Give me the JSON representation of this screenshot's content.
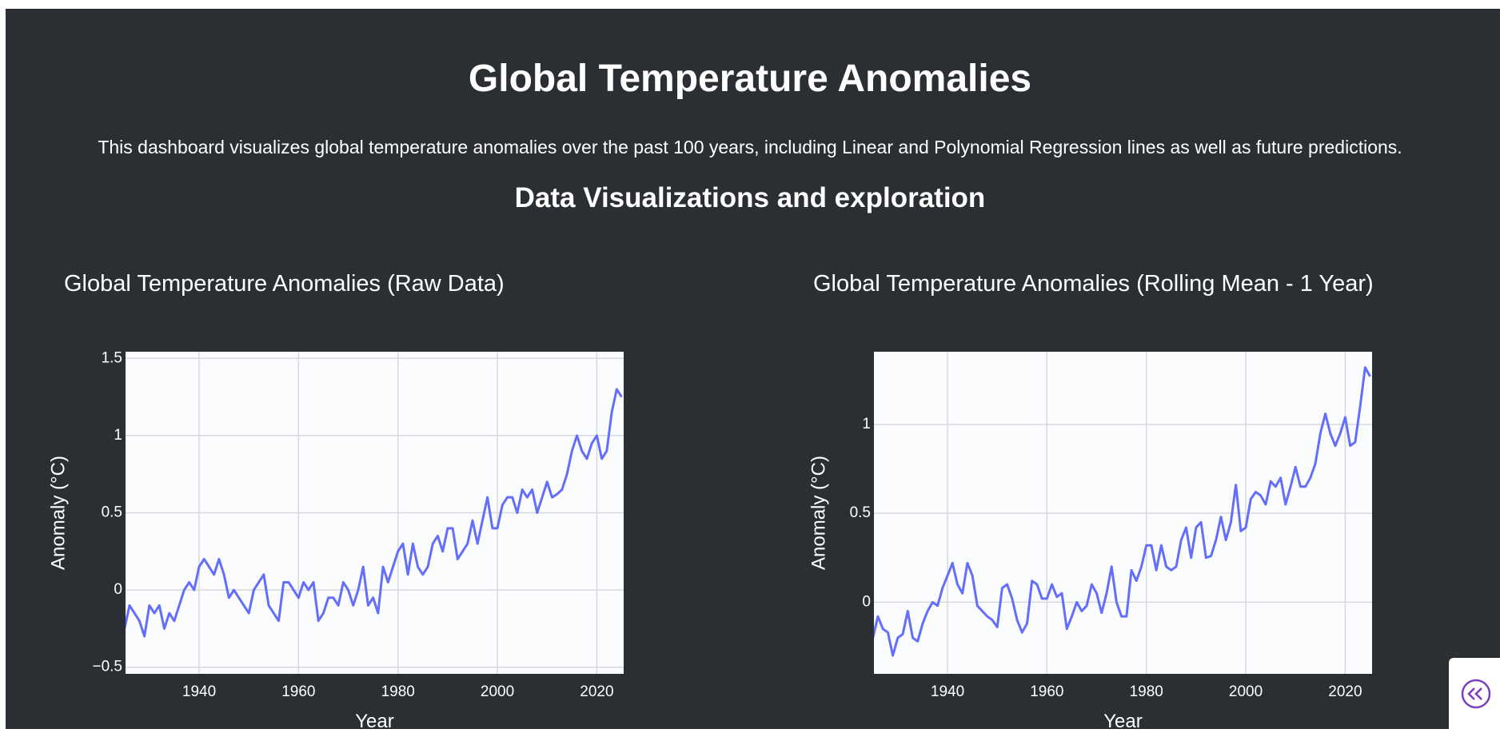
{
  "header": {
    "title": "Global Temperature Anomalies",
    "subtitle": "This dashboard visualizes global temperature anomalies over the past 100 years, including Linear and Polynomial Regression lines as well as future predictions.",
    "section": "Data Visualizations and exploration"
  },
  "chart_data": [
    {
      "type": "line",
      "title": "Global Temperature Anomalies (Raw Data)",
      "x_label": "Year",
      "y_label": "Anomaly (°C)",
      "color": "#636efa",
      "grid": true,
      "xlim": [
        1925.2,
        2025.4
      ],
      "xticks": [
        1940,
        1960,
        1980,
        2000,
        2020
      ],
      "ylim": [
        -0.543,
        1.543
      ],
      "yticks": [
        {
          "value": -0.5,
          "label": "−0.5"
        },
        0,
        0.5,
        1,
        1.5
      ],
      "x": [
        1925,
        1926,
        1927,
        1928,
        1929,
        1930,
        1931,
        1932,
        1933,
        1934,
        1935,
        1936,
        1937,
        1938,
        1939,
        1940,
        1941,
        1942,
        1943,
        1944,
        1945,
        1946,
        1947,
        1948,
        1949,
        1950,
        1951,
        1952,
        1953,
        1954,
        1955,
        1956,
        1957,
        1958,
        1959,
        1960,
        1961,
        1962,
        1963,
        1964,
        1965,
        1966,
        1967,
        1968,
        1969,
        1970,
        1971,
        1972,
        1973,
        1974,
        1975,
        1976,
        1977,
        1978,
        1979,
        1980,
        1981,
        1982,
        1983,
        1984,
        1985,
        1986,
        1987,
        1988,
        1989,
        1990,
        1991,
        1992,
        1993,
        1994,
        1995,
        1996,
        1997,
        1998,
        1999,
        2000,
        2001,
        2002,
        2003,
        2004,
        2005,
        2006,
        2007,
        2008,
        2009,
        2010,
        2011,
        2012,
        2013,
        2014,
        2015,
        2016,
        2017,
        2018,
        2019,
        2020,
        2021,
        2022,
        2023,
        2024,
        2025
      ],
      "values": [
        -0.25,
        -0.1,
        -0.15,
        -0.2,
        -0.3,
        -0.1,
        -0.15,
        -0.1,
        -0.25,
        -0.15,
        -0.2,
        -0.1,
        0.0,
        0.05,
        0.0,
        0.15,
        0.2,
        0.15,
        0.1,
        0.2,
        0.1,
        -0.05,
        0.0,
        -0.05,
        -0.1,
        -0.15,
        0.0,
        0.05,
        0.1,
        -0.1,
        -0.15,
        -0.2,
        0.05,
        0.05,
        0.0,
        -0.05,
        0.05,
        0.0,
        0.05,
        -0.2,
        -0.15,
        -0.05,
        -0.05,
        -0.1,
        0.05,
        0.0,
        -0.1,
        0.0,
        0.15,
        -0.1,
        -0.05,
        -0.15,
        0.15,
        0.05,
        0.15,
        0.25,
        0.3,
        0.1,
        0.3,
        0.15,
        0.1,
        0.15,
        0.3,
        0.35,
        0.25,
        0.4,
        0.4,
        0.2,
        0.25,
        0.3,
        0.45,
        0.3,
        0.45,
        0.6,
        0.4,
        0.4,
        0.55,
        0.6,
        0.6,
        0.5,
        0.65,
        0.6,
        0.65,
        0.5,
        0.6,
        0.7,
        0.6,
        0.62,
        0.65,
        0.75,
        0.9,
        1.0,
        0.9,
        0.85,
        0.95,
        1.0,
        0.85,
        0.9,
        1.15,
        1.3,
        1.25
      ]
    },
    {
      "type": "line",
      "title": "Global Temperature Anomalies (Rolling Mean - 1 Year)",
      "x_label": "Year",
      "y_label": "Anomaly (°C)",
      "color": "#636efa",
      "grid": true,
      "xlim": [
        1925.2,
        2025.4
      ],
      "xticks": [
        1940,
        1960,
        1980,
        2000,
        2020
      ],
      "ylim": [
        -0.403,
        1.409
      ],
      "yticks": [
        0,
        0.5,
        1
      ],
      "x": [
        1925,
        1926,
        1927,
        1928,
        1929,
        1930,
        1931,
        1932,
        1933,
        1934,
        1935,
        1936,
        1937,
        1938,
        1939,
        1940,
        1941,
        1942,
        1943,
        1944,
        1945,
        1946,
        1947,
        1948,
        1949,
        1950,
        1951,
        1952,
        1953,
        1954,
        1955,
        1956,
        1957,
        1958,
        1959,
        1960,
        1961,
        1962,
        1963,
        1964,
        1965,
        1966,
        1967,
        1968,
        1969,
        1970,
        1971,
        1972,
        1973,
        1974,
        1975,
        1976,
        1977,
        1978,
        1979,
        1980,
        1981,
        1982,
        1983,
        1984,
        1985,
        1986,
        1987,
        1988,
        1989,
        1990,
        1991,
        1992,
        1993,
        1994,
        1995,
        1996,
        1997,
        1998,
        1999,
        2000,
        2001,
        2002,
        2003,
        2004,
        2005,
        2006,
        2007,
        2008,
        2009,
        2010,
        2011,
        2012,
        2013,
        2014,
        2015,
        2016,
        2017,
        2018,
        2019,
        2020,
        2021,
        2022,
        2023,
        2024,
        2025
      ],
      "values": [
        -0.2,
        -0.08,
        -0.15,
        -0.17,
        -0.3,
        -0.2,
        -0.18,
        -0.05,
        -0.2,
        -0.22,
        -0.12,
        -0.05,
        0.0,
        -0.02,
        0.08,
        0.15,
        0.22,
        0.1,
        0.05,
        0.22,
        0.15,
        -0.02,
        -0.05,
        -0.08,
        -0.1,
        -0.14,
        0.08,
        0.1,
        0.02,
        -0.1,
        -0.17,
        -0.12,
        0.12,
        0.1,
        0.02,
        0.02,
        0.1,
        0.03,
        0.05,
        -0.15,
        -0.08,
        0.0,
        -0.05,
        -0.02,
        0.1,
        0.05,
        -0.06,
        0.05,
        0.2,
        0.0,
        -0.08,
        -0.08,
        0.18,
        0.12,
        0.2,
        0.32,
        0.32,
        0.18,
        0.32,
        0.2,
        0.18,
        0.2,
        0.35,
        0.42,
        0.25,
        0.42,
        0.45,
        0.25,
        0.26,
        0.35,
        0.48,
        0.35,
        0.45,
        0.66,
        0.4,
        0.42,
        0.58,
        0.62,
        0.6,
        0.55,
        0.68,
        0.65,
        0.7,
        0.55,
        0.65,
        0.76,
        0.65,
        0.65,
        0.7,
        0.78,
        0.95,
        1.06,
        0.95,
        0.88,
        0.95,
        1.04,
        0.88,
        0.9,
        1.1,
        1.32,
        1.27
      ]
    }
  ]
}
